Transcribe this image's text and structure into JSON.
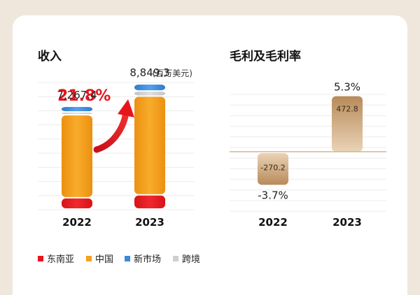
{
  "chart_data": [
    {
      "type": "bar",
      "stacked": true,
      "title": "收入",
      "unit": "百万美元",
      "categories": [
        "2022",
        "2023"
      ],
      "totals": [
        7267.4,
        8849.3
      ],
      "total_labels": [
        "7,267.4",
        "8,849.3"
      ],
      "growth_label": "21.8%",
      "series": [
        {
          "name": "东南亚",
          "color": "#e8141c",
          "values": [
            800,
            1000
          ]
        },
        {
          "name": "中国",
          "color": "#f5a01e",
          "values": [
            5867.4,
            6989.3
          ]
        },
        {
          "name": "跨境",
          "color": "#cfcfcf",
          "values": [
            200,
            360
          ]
        },
        {
          "name": "新市场",
          "color": "#3b88d8",
          "values": [
            400,
            500
          ]
        }
      ],
      "ylim": [
        0,
        9000
      ]
    },
    {
      "type": "bar",
      "title": "毛利及毛利率",
      "categories": [
        "2022",
        "2023"
      ],
      "values": [
        -270.2,
        472.8
      ],
      "value_labels": [
        "-270.2",
        "472.8"
      ],
      "margin_labels": [
        "-3.7%",
        "5.3%"
      ],
      "ylim": [
        -400,
        500
      ]
    }
  ],
  "legend": [
    {
      "name": "东南亚",
      "color": "#e8141c"
    },
    {
      "name": "中国",
      "color": "#f5a01e"
    },
    {
      "name": "新市场",
      "color": "#3b88d8"
    },
    {
      "name": "跨境",
      "color": "#cfcfcf"
    }
  ]
}
